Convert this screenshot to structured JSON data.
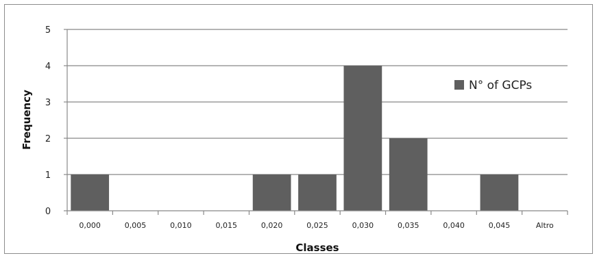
{
  "chart_data": {
    "type": "bar",
    "categories": [
      "0,000",
      "0,005",
      "0,010",
      "0,015",
      "0,020",
      "0,025",
      "0,030",
      "0,035",
      "0,040",
      "0,045",
      "Altro"
    ],
    "series": [
      {
        "name": "N° of GCPs",
        "values": [
          1,
          0,
          0,
          0,
          1,
          1,
          4,
          2,
          0,
          1,
          0
        ]
      }
    ],
    "xlabel": "Classes",
    "ylabel": "Frequency",
    "ylim": [
      0,
      5
    ],
    "yticks": [
      "0",
      "1",
      "2",
      "3",
      "4",
      "5"
    ],
    "grid": true,
    "legend_position": "right",
    "colors": {
      "bar": "#5f5f5f",
      "grid": "#888888",
      "axis": "#888888"
    }
  }
}
